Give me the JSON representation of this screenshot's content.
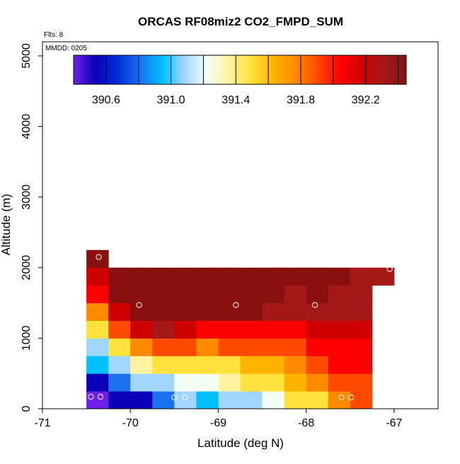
{
  "chart_data": {
    "type": "heatmap",
    "title": "ORCAS RF08miz2 CO2_FMPD_SUM",
    "annotations": [
      "Flts: 8",
      "MMDD: 0205"
    ],
    "xlabel": "Latitude (deg N)",
    "ylabel": "Altitude (m)",
    "xlim": [
      -71,
      -66.5
    ],
    "ylim": [
      0,
      5200
    ],
    "xticks": [
      -71,
      -70,
      -69,
      -68,
      -67
    ],
    "xtick_labels": [
      "-71",
      "-70",
      "-69",
      "-68",
      "-67"
    ],
    "yticks": [
      0,
      1000,
      2000,
      3000,
      4000,
      5000
    ],
    "ytick_labels": [
      "0",
      "1000",
      "2000",
      "3000",
      "4000",
      "5000"
    ],
    "colorbar": {
      "range": [
        390.4,
        392.45
      ],
      "ticks": [
        390.6,
        391.0,
        391.4,
        391.8,
        392.2
      ],
      "tick_labels": [
        "390.6",
        "391.0",
        "391.4",
        "391.8",
        "392.2"
      ],
      "boundaries": [
        390.6,
        390.8,
        391.0,
        391.2,
        391.4,
        391.6,
        391.8,
        392.0,
        392.2,
        392.4
      ],
      "colors": [
        "#6f1fe8",
        "#0a00b8",
        "#0030d8",
        "#1a72ee",
        "#00bfff",
        "#a3d6ff",
        "#f2fff5",
        "#fff2a0",
        "#ffe23b",
        "#ffb400",
        "#ff8a00",
        "#ff4a00",
        "#ff0000",
        "#cf0000",
        "#a51818",
        "#8a1010"
      ]
    },
    "grid": false,
    "x_step": 0.25,
    "y_step": 250,
    "cells": [
      {
        "row": 0,
        "cols": [
          {
            "lat": -70.375,
            "v": 390.45
          },
          {
            "lat": -70.125,
            "v": 390.65
          },
          {
            "lat": -69.875,
            "v": 390.65
          },
          {
            "lat": -69.625,
            "v": 390.85
          },
          {
            "lat": -69.375,
            "v": 391.15
          },
          {
            "lat": -69.125,
            "v": 390.95
          },
          {
            "lat": -68.875,
            "v": 391.05
          },
          {
            "lat": -68.625,
            "v": 391.15
          },
          {
            "lat": -68.375,
            "v": 391.25
          },
          {
            "lat": -68.125,
            "v": 391.45
          },
          {
            "lat": -67.875,
            "v": 391.55
          },
          {
            "lat": -67.625,
            "v": 391.75
          },
          {
            "lat": -67.375,
            "v": 391.85
          }
        ]
      },
      {
        "row": 1,
        "cols": [
          {
            "lat": -70.375,
            "v": 390.65
          },
          {
            "lat": -70.125,
            "v": 390.85
          },
          {
            "lat": -69.875,
            "v": 391.05
          },
          {
            "lat": -69.625,
            "v": 391.15
          },
          {
            "lat": -69.375,
            "v": 391.25
          },
          {
            "lat": -69.125,
            "v": 391.25
          },
          {
            "lat": -68.875,
            "v": 391.35
          },
          {
            "lat": -68.625,
            "v": 391.45
          },
          {
            "lat": -68.375,
            "v": 391.55
          },
          {
            "lat": -68.125,
            "v": 391.65
          },
          {
            "lat": -67.875,
            "v": 391.75
          },
          {
            "lat": -67.625,
            "v": 391.85
          },
          {
            "lat": -67.375,
            "v": 391.85
          }
        ]
      },
      {
        "row": 2,
        "cols": [
          {
            "lat": -70.375,
            "v": 390.95
          },
          {
            "lat": -70.125,
            "v": 391.15
          },
          {
            "lat": -69.875,
            "v": 391.35
          },
          {
            "lat": -69.625,
            "v": 391.45
          },
          {
            "lat": -69.375,
            "v": 391.45
          },
          {
            "lat": -69.125,
            "v": 391.45
          },
          {
            "lat": -68.875,
            "v": 391.55
          },
          {
            "lat": -68.625,
            "v": 391.65
          },
          {
            "lat": -68.375,
            "v": 391.65
          },
          {
            "lat": -68.125,
            "v": 391.75
          },
          {
            "lat": -67.875,
            "v": 391.85
          },
          {
            "lat": -67.625,
            "v": 391.95
          },
          {
            "lat": -67.375,
            "v": 392.05
          }
        ]
      },
      {
        "row": 3,
        "cols": [
          {
            "lat": -70.375,
            "v": 391.15
          },
          {
            "lat": -70.125,
            "v": 391.45
          },
          {
            "lat": -69.875,
            "v": 391.75
          },
          {
            "lat": -69.625,
            "v": 391.85
          },
          {
            "lat": -69.375,
            "v": 391.85
          },
          {
            "lat": -69.125,
            "v": 391.75
          },
          {
            "lat": -68.875,
            "v": 391.85
          },
          {
            "lat": -68.625,
            "v": 391.85
          },
          {
            "lat": -68.375,
            "v": 391.85
          },
          {
            "lat": -68.125,
            "v": 391.85
          },
          {
            "lat": -67.875,
            "v": 391.95
          },
          {
            "lat": -67.625,
            "v": 392.05
          },
          {
            "lat": -67.375,
            "v": 392.05
          }
        ]
      },
      {
        "row": 4,
        "cols": [
          {
            "lat": -70.375,
            "v": 391.45
          },
          {
            "lat": -70.125,
            "v": 391.85
          },
          {
            "lat": -69.875,
            "v": 392.15
          },
          {
            "lat": -69.625,
            "v": 392.25
          },
          {
            "lat": -69.375,
            "v": 392.15
          },
          {
            "lat": -69.125,
            "v": 392.05
          },
          {
            "lat": -68.875,
            "v": 392.05
          },
          {
            "lat": -68.625,
            "v": 392.05
          },
          {
            "lat": -68.375,
            "v": 392.05
          },
          {
            "lat": -68.125,
            "v": 392.05
          },
          {
            "lat": -67.875,
            "v": 392.15
          },
          {
            "lat": -67.625,
            "v": 392.15
          },
          {
            "lat": -67.375,
            "v": 392.15
          }
        ]
      },
      {
        "row": 5,
        "cols": [
          {
            "lat": -70.375,
            "v": 391.75
          },
          {
            "lat": -70.125,
            "v": 392.15
          },
          {
            "lat": -69.875,
            "v": 392.35
          },
          {
            "lat": -69.625,
            "v": 392.35
          },
          {
            "lat": -69.375,
            "v": 392.35
          },
          {
            "lat": -69.125,
            "v": 392.35
          },
          {
            "lat": -68.875,
            "v": 392.35
          },
          {
            "lat": -68.625,
            "v": 392.35
          },
          {
            "lat": -68.375,
            "v": 392.25
          },
          {
            "lat": -68.125,
            "v": 392.25
          },
          {
            "lat": -67.875,
            "v": 392.25
          },
          {
            "lat": -67.625,
            "v": 392.25
          },
          {
            "lat": -67.375,
            "v": 392.25
          }
        ]
      },
      {
        "row": 6,
        "cols": [
          {
            "lat": -70.375,
            "v": 391.95
          },
          {
            "lat": -70.125,
            "v": 392.35
          },
          {
            "lat": -69.875,
            "v": 392.35
          },
          {
            "lat": -69.625,
            "v": 392.35
          },
          {
            "lat": -69.375,
            "v": 392.35
          },
          {
            "lat": -69.125,
            "v": 392.35
          },
          {
            "lat": -68.875,
            "v": 392.35
          },
          {
            "lat": -68.625,
            "v": 392.35
          },
          {
            "lat": -68.375,
            "v": 392.35
          },
          {
            "lat": -68.125,
            "v": 392.25
          },
          {
            "lat": -67.875,
            "v": 392.35
          },
          {
            "lat": -67.625,
            "v": 392.25
          },
          {
            "lat": -67.375,
            "v": 392.25
          }
        ]
      },
      {
        "row": 7,
        "cols": [
          {
            "lat": -70.375,
            "v": 392.15
          },
          {
            "lat": -70.125,
            "v": 392.35
          },
          {
            "lat": -69.875,
            "v": 392.35
          },
          {
            "lat": -69.625,
            "v": 392.35
          },
          {
            "lat": -69.375,
            "v": 392.35
          },
          {
            "lat": -69.125,
            "v": 392.35
          },
          {
            "lat": -68.875,
            "v": 392.35
          },
          {
            "lat": -68.625,
            "v": 392.35
          },
          {
            "lat": -68.375,
            "v": 392.35
          },
          {
            "lat": -68.125,
            "v": 392.35
          },
          {
            "lat": -67.875,
            "v": 392.35
          },
          {
            "lat": -67.625,
            "v": 392.35
          },
          {
            "lat": -67.375,
            "v": 392.25
          },
          {
            "lat": -67.125,
            "v": 392.25
          }
        ]
      },
      {
        "row": 8,
        "cols": [
          {
            "lat": -70.375,
            "v": 392.45
          }
        ]
      }
    ],
    "flight_points": [
      {
        "lat": -70.45,
        "alt": 170
      },
      {
        "lat": -70.34,
        "alt": 170
      },
      {
        "lat": -69.5,
        "alt": 160
      },
      {
        "lat": -69.38,
        "alt": 160
      },
      {
        "lat": -68.45,
        "alt": 160
      },
      {
        "lat": -68.35,
        "alt": 160
      },
      {
        "lat": -67.6,
        "alt": 160
      },
      {
        "lat": -67.49,
        "alt": 160
      },
      {
        "lat": -70.36,
        "alt": 2150
      },
      {
        "lat": -69.9,
        "alt": 1470
      },
      {
        "lat": -68.8,
        "alt": 1470
      },
      {
        "lat": -67.9,
        "alt": 1470
      },
      {
        "lat": -67.05,
        "alt": 1980
      }
    ]
  }
}
